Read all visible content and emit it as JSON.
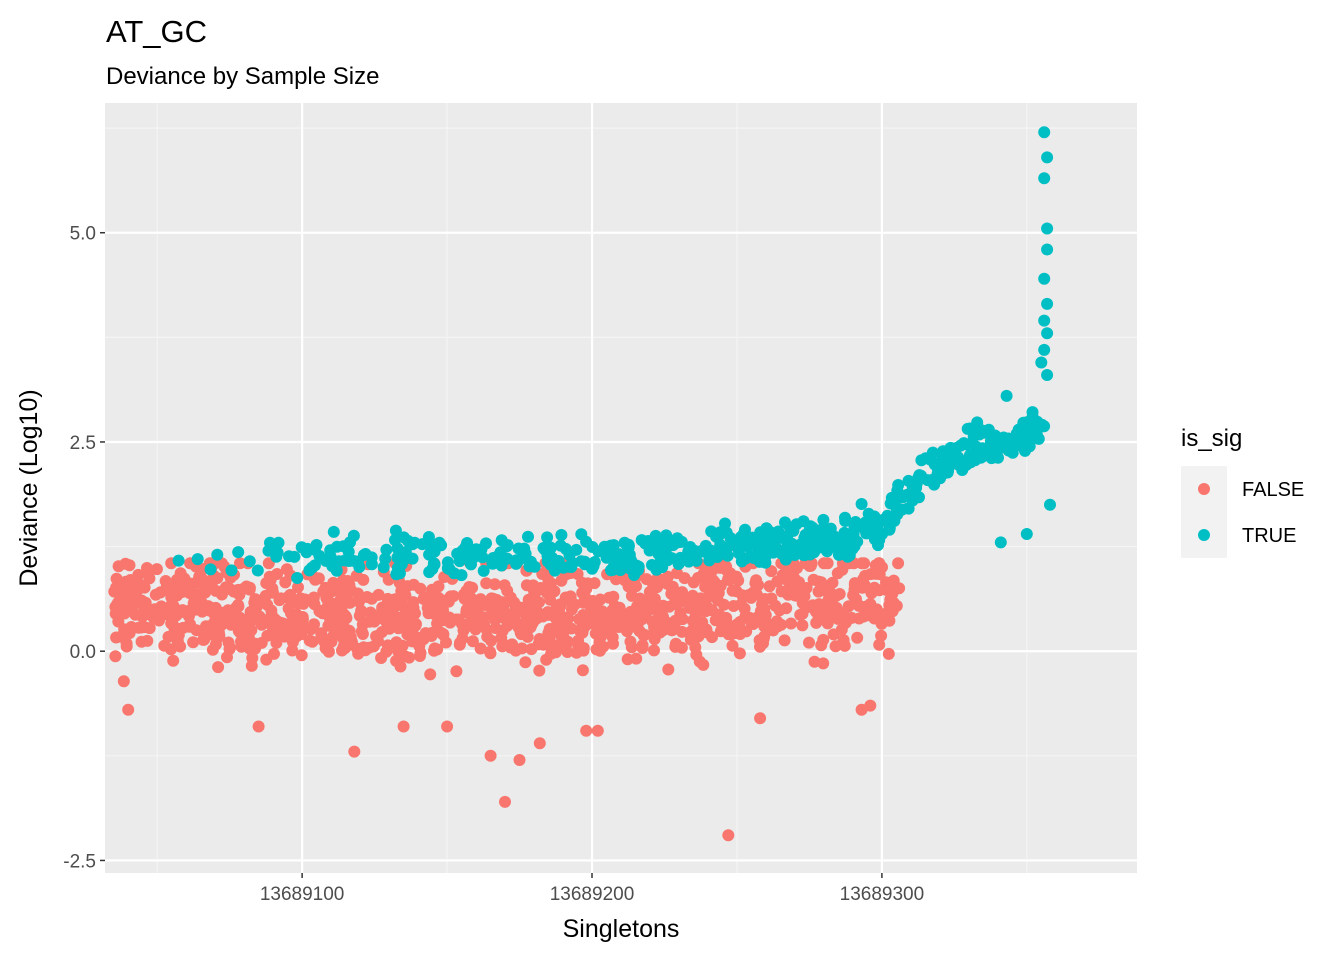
{
  "chart_data": {
    "type": "scatter",
    "title": "AT_GC",
    "subtitle": "Deviance by Sample Size",
    "xlabel": "Singletons",
    "ylabel": "Deviance (Log10)",
    "xlim": [
      13689032,
      13689388
    ],
    "ylim": [
      -2.65,
      6.55
    ],
    "x_ticks": [
      13689100,
      13689200,
      13689300
    ],
    "x_tick_labels": [
      "13689100",
      "13689200",
      "13689300"
    ],
    "y_ticks": [
      -2.5,
      0.0,
      2.5,
      5.0
    ],
    "y_tick_labels": [
      "-2.5",
      "0.0",
      "2.5",
      "5.0"
    ],
    "grid": true,
    "legend": {
      "title": "is_sig",
      "position": "right",
      "entries": [
        {
          "label": "FALSE",
          "color": "#F8766D"
        },
        {
          "label": "TRUE",
          "color": "#00BFC4"
        }
      ]
    },
    "colors": {
      "panel": "#EBEBEB",
      "grid_major": "#FFFFFF",
      "grid_minor": "#F5F5F5",
      "axis_text": "#4D4D4D"
    },
    "series": [
      {
        "name": "FALSE",
        "color": "#F8766D",
        "trend": {
          "x": [
            13689035,
            13689060,
            13689100,
            13689150,
            13689200,
            13689240,
            13689260,
            13689280,
            13689300,
            13689306
          ],
          "y": [
            0.55,
            0.5,
            0.42,
            0.4,
            0.45,
            0.55,
            0.6,
            0.6,
            0.6,
            0.6
          ]
        },
        "spread": 0.42,
        "point_count": 1150,
        "notable_points": [
          {
            "x": 13689118,
            "y": -1.2
          },
          {
            "x": 13689170,
            "y": -1.8
          },
          {
            "x": 13689165,
            "y": -1.25
          },
          {
            "x": 13689175,
            "y": -1.3
          },
          {
            "x": 13689182,
            "y": -1.1
          },
          {
            "x": 13689247,
            "y": -2.2
          },
          {
            "x": 13689040,
            "y": -0.7
          },
          {
            "x": 13689085,
            "y": -0.9
          },
          {
            "x": 13689198,
            "y": -0.95
          },
          {
            "x": 13689202,
            "y": -0.95
          },
          {
            "x": 13689258,
            "y": -0.8
          },
          {
            "x": 13689296,
            "y": -0.65
          },
          {
            "x": 13689293,
            "y": -0.7
          },
          {
            "x": 13689135,
            "y": -0.9
          },
          {
            "x": 13689150,
            "y": -0.9
          }
        ]
      },
      {
        "name": "TRUE",
        "color": "#00BFC4",
        "trend": {
          "x": [
            13689055,
            13689100,
            13689150,
            13689200,
            13689230,
            13689250,
            13689270,
            13689290,
            13689300,
            13689310,
            13689320,
            13689330,
            13689340,
            13689350,
            13689356
          ],
          "y": [
            1.1,
            1.1,
            1.1,
            1.12,
            1.15,
            1.25,
            1.3,
            1.35,
            1.5,
            1.9,
            2.2,
            2.4,
            2.5,
            2.6,
            2.7
          ]
        },
        "spread": 0.18,
        "point_count": 560,
        "notable_points": [
          {
            "x": 13689356,
            "y": 6.2
          },
          {
            "x": 13689357,
            "y": 5.9
          },
          {
            "x": 13689356,
            "y": 5.65
          },
          {
            "x": 13689357,
            "y": 5.05
          },
          {
            "x": 13689357,
            "y": 4.8
          },
          {
            "x": 13689356,
            "y": 4.45
          },
          {
            "x": 13689357,
            "y": 4.15
          },
          {
            "x": 13689356,
            "y": 3.95
          },
          {
            "x": 13689357,
            "y": 3.8
          },
          {
            "x": 13689356,
            "y": 3.6
          },
          {
            "x": 13689355,
            "y": 3.45
          },
          {
            "x": 13689357,
            "y": 3.3
          },
          {
            "x": 13689341,
            "y": 1.3
          },
          {
            "x": 13689350,
            "y": 1.4
          },
          {
            "x": 13689358,
            "y": 1.75
          },
          {
            "x": 13689343,
            "y": 3.05
          }
        ]
      }
    ]
  }
}
